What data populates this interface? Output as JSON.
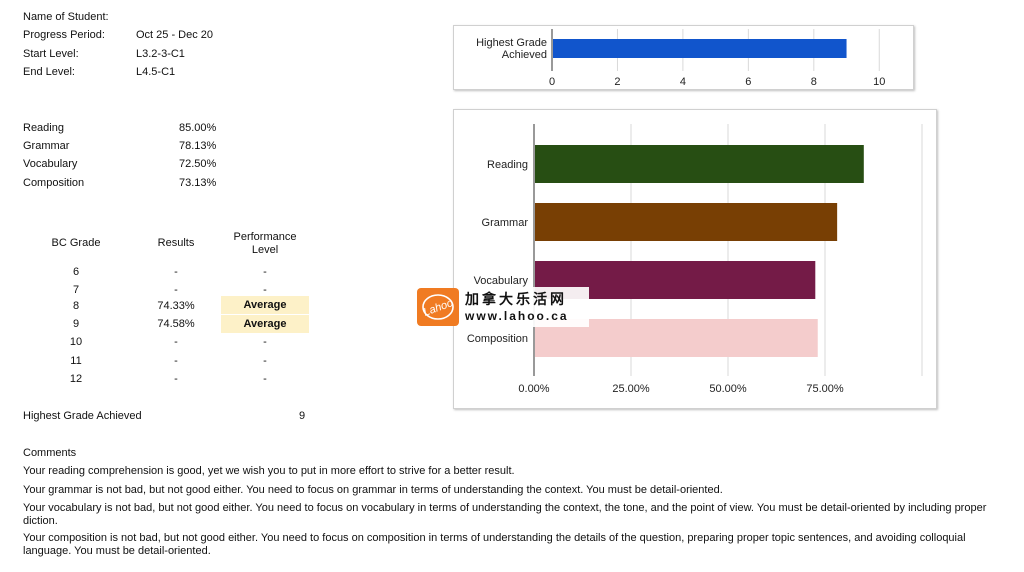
{
  "header": {
    "name_label": "Name of Student:",
    "name_value": "",
    "period_label": "Progress Period:",
    "period_value": "Oct 25 - Dec 20",
    "start_label": "Start Level:",
    "start_value": "L3.2-3-C1",
    "end_label": "End Level:",
    "end_value": "L4.5-C1"
  },
  "scores": [
    {
      "label": "Reading",
      "value": "85.00%"
    },
    {
      "label": "Grammar",
      "value": "78.13%"
    },
    {
      "label": "Vocabulary",
      "value": "72.50%"
    },
    {
      "label": "Composition",
      "value": "73.13%"
    }
  ],
  "grade_table": {
    "col_grade": "BC Grade",
    "col_results": "Results",
    "col_perf_line1": "Performance",
    "col_perf_line2": "Level",
    "rows": [
      {
        "grade": "6",
        "result": "-",
        "perf": "-"
      },
      {
        "grade": "7",
        "result": "-",
        "perf": "-"
      },
      {
        "grade": "8",
        "result": "74.33%",
        "perf": "Average"
      },
      {
        "grade": "9",
        "result": "74.58%",
        "perf": "Average"
      },
      {
        "grade": "10",
        "result": "-",
        "perf": "-"
      },
      {
        "grade": "11",
        "result": "-",
        "perf": "-"
      },
      {
        "grade": "12",
        "result": "-",
        "perf": "-"
      }
    ]
  },
  "highest": {
    "label": "Highest Grade Achieved",
    "value": "9"
  },
  "comments": {
    "title": "Comments",
    "items": [
      "Your reading comprehension is good, yet we wish you to put in more effort to strive for a better result.",
      "Your grammar is not bad, but not good either. You need to focus on grammar in terms of understanding the context. You must be detail-oriented.",
      "Your vocabulary is not bad, but not good either. You need to focus on vocabulary in terms of understanding the context, the tone, and the point of view. You must be detail-oriented by including proper diction.",
      "Your composition is not bad, but not good either. You need to focus on composition in terms of understanding the details of the question, preparing proper topic sentences, and avoiding colloquial language. You must be detail-oriented."
    ]
  },
  "watermark": {
    "logo_text": "Lahoo",
    "cn_text": "加拿大乐活网",
    "url_text": "www.lahoo.ca",
    "color": "#f07b22"
  },
  "chart_data": [
    {
      "type": "bar",
      "orientation": "horizontal",
      "categories": [
        "Highest Grade Achieved"
      ],
      "category_lines": [
        [
          "Highest Grade",
          "Achieved"
        ]
      ],
      "values": [
        9
      ],
      "xlim": [
        0,
        11
      ],
      "ticks": [
        0,
        2,
        4,
        6,
        8,
        10
      ],
      "tick_labels": [
        "0",
        "2",
        "4",
        "6",
        "8",
        "10"
      ],
      "grid": true,
      "colors": [
        "#1155cc"
      ]
    },
    {
      "type": "bar",
      "orientation": "horizontal",
      "categories": [
        "Reading",
        "Grammar",
        "Vocabulary",
        "Composition"
      ],
      "values": [
        85.0,
        78.13,
        72.5,
        73.13
      ],
      "xlim": [
        0,
        100
      ],
      "ticks": [
        0,
        25,
        50,
        75
      ],
      "tick_labels": [
        "0.00%",
        "25.00%",
        "50.00%",
        "75.00%"
      ],
      "grid": true,
      "colors": [
        "#274e13",
        "#783f04",
        "#741b47",
        "#f4cccc"
      ]
    }
  ]
}
